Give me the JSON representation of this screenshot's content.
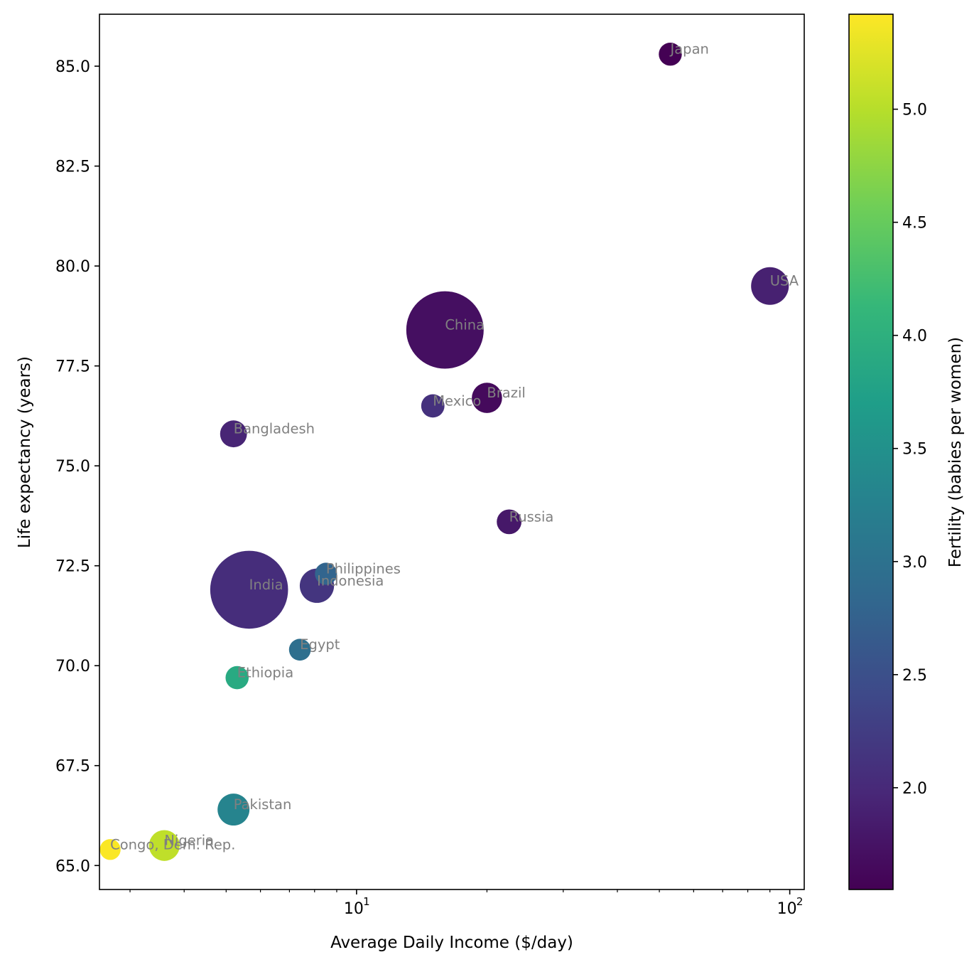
{
  "chart_data": {
    "type": "scatter",
    "title": "",
    "xlabel": "Average Daily Income ($/day)",
    "ylabel": "Life expectancy (years)",
    "xscale": "log",
    "xlim": [
      2.55,
      108
    ],
    "ylim": [
      64.4,
      86.3
    ],
    "yticks": [
      {
        "value": 65.0,
        "label": "65.0"
      },
      {
        "value": 67.5,
        "label": "67.5"
      },
      {
        "value": 70.0,
        "label": "70.0"
      },
      {
        "value": 72.5,
        "label": "72.5"
      },
      {
        "value": 75.0,
        "label": "75.0"
      },
      {
        "value": 77.5,
        "label": "77.5"
      },
      {
        "value": 80.0,
        "label": "80.0"
      },
      {
        "value": 82.5,
        "label": "82.5"
      },
      {
        "value": 85.0,
        "label": "85.0"
      }
    ],
    "xticks_major": [
      {
        "value": 10,
        "label": "10",
        "exp": "1"
      },
      {
        "value": 100,
        "label": "10",
        "exp": "2"
      }
    ],
    "xticks_minor": [
      3,
      4,
      5,
      6,
      7,
      8,
      9,
      20,
      30,
      40,
      50,
      60,
      70,
      80,
      90
    ],
    "colorbar": {
      "label": "Fertility (babies per women)",
      "range": [
        1.55,
        5.42
      ],
      "colormap": "viridis",
      "ticks": [
        {
          "value": 2.0,
          "label": "2.0"
        },
        {
          "value": 2.5,
          "label": "2.5"
        },
        {
          "value": 3.0,
          "label": "3.0"
        },
        {
          "value": 3.5,
          "label": "3.5"
        },
        {
          "value": 4.0,
          "label": "4.0"
        },
        {
          "value": 4.5,
          "label": "4.5"
        },
        {
          "value": 5.0,
          "label": "5.0"
        }
      ],
      "stops": [
        "#440154",
        "#482878",
        "#3e4989",
        "#31688e",
        "#26828e",
        "#1f9e89",
        "#35b779",
        "#6ece58",
        "#b5de2b",
        "#fde725"
      ]
    },
    "size_encoding": "population (millions)",
    "points": [
      {
        "name": "Japan",
        "income": 53,
        "life": 85.3,
        "fertility": 1.55,
        "population": 125
      },
      {
        "name": "USA",
        "income": 90,
        "life": 79.5,
        "fertility": 1.9,
        "population": 335
      },
      {
        "name": "China",
        "income": 16,
        "life": 78.4,
        "fertility": 1.7,
        "population": 1412
      },
      {
        "name": "Brazil",
        "income": 20,
        "life": 76.7,
        "fertility": 1.65,
        "population": 216
      },
      {
        "name": "Mexico",
        "income": 15,
        "life": 76.5,
        "fertility": 2.1,
        "population": 128
      },
      {
        "name": "Bangladesh",
        "income": 5.2,
        "life": 75.8,
        "fertility": 1.95,
        "population": 170
      },
      {
        "name": "Russia",
        "income": 22.5,
        "life": 73.6,
        "fertility": 1.8,
        "population": 144
      },
      {
        "name": "Philippines",
        "income": 8.5,
        "life": 72.3,
        "fertility": 2.8,
        "population": 115
      },
      {
        "name": "Indonesia",
        "income": 8.1,
        "life": 72.0,
        "fertility": 2.15,
        "population": 277
      },
      {
        "name": "India",
        "income": 5.65,
        "life": 71.9,
        "fertility": 2.05,
        "population": 1428
      },
      {
        "name": "Egypt",
        "income": 7.4,
        "life": 70.4,
        "fertility": 2.95,
        "population": 112
      },
      {
        "name": "Ethiopia",
        "income": 5.3,
        "life": 69.7,
        "fertility": 3.9,
        "population": 126
      },
      {
        "name": "Pakistan",
        "income": 5.2,
        "life": 66.4,
        "fertility": 3.3,
        "population": 240
      },
      {
        "name": "Nigeria",
        "income": 3.6,
        "life": 65.5,
        "fertility": 5.05,
        "population": 223
      },
      {
        "name": "Congo, Dem. Rep.",
        "income": 2.7,
        "life": 65.4,
        "fertility": 5.4,
        "population": 102
      }
    ]
  }
}
